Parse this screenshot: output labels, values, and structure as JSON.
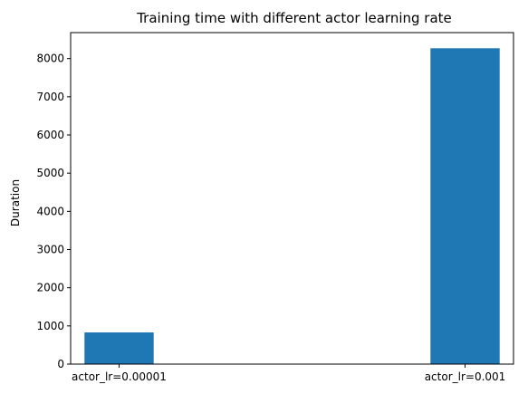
{
  "chart_data": {
    "type": "bar",
    "title": "Training time with different actor learning rate",
    "xlabel": "",
    "ylabel": "Duration",
    "categories": [
      "actor_lr=0.00001",
      "actor_lr=0.001"
    ],
    "values": [
      830,
      8270
    ],
    "ylim": [
      0,
      8680
    ],
    "yticks": [
      0,
      1000,
      2000,
      3000,
      4000,
      5000,
      6000,
      7000,
      8000
    ],
    "bar_color": "#1f77b4",
    "grid": false,
    "legend": "none"
  }
}
